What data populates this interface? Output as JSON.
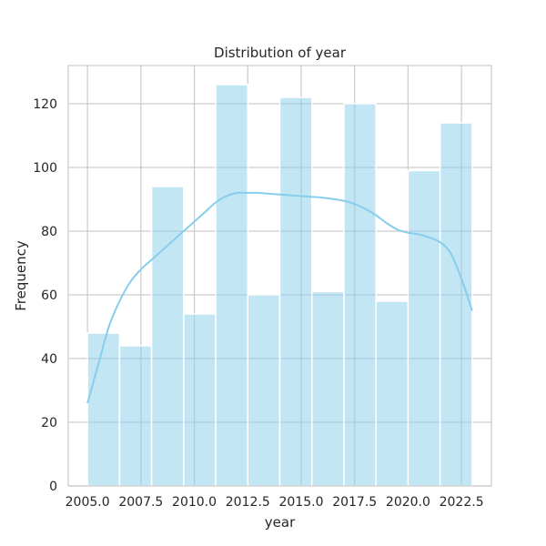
{
  "chart_data": {
    "type": "bar",
    "title": "Distribution of year",
    "xlabel": "year",
    "ylabel": "Frequency",
    "xlim": [
      2004.1,
      2023.9
    ],
    "ylim": [
      0,
      132
    ],
    "grid": true,
    "bar_color": "#87ceeb",
    "kde_color": "#87ceeb",
    "x_ticks": [
      2005.0,
      2007.5,
      2010.0,
      2012.5,
      2015.0,
      2017.5,
      2020.0,
      2022.5
    ],
    "x_tick_labels": [
      "2005.0",
      "2007.5",
      "2010.0",
      "2012.5",
      "2015.0",
      "2017.5",
      "2020.0",
      "2022.5"
    ],
    "y_ticks": [
      0,
      20,
      40,
      60,
      80,
      100,
      120
    ],
    "y_tick_labels": [
      "0",
      "20",
      "40",
      "60",
      "80",
      "100",
      "120"
    ],
    "bins": [
      {
        "start": 2005.0,
        "end": 2006.5,
        "count": 48
      },
      {
        "start": 2006.5,
        "end": 2008.0,
        "count": 44
      },
      {
        "start": 2008.0,
        "end": 2009.5,
        "count": 94
      },
      {
        "start": 2009.5,
        "end": 2011.0,
        "count": 54
      },
      {
        "start": 2011.0,
        "end": 2012.5,
        "count": 126
      },
      {
        "start": 2012.5,
        "end": 2014.0,
        "count": 60
      },
      {
        "start": 2014.0,
        "end": 2015.5,
        "count": 122
      },
      {
        "start": 2015.5,
        "end": 2017.0,
        "count": 61
      },
      {
        "start": 2017.0,
        "end": 2018.5,
        "count": 120
      },
      {
        "start": 2018.5,
        "end": 2020.0,
        "count": 58
      },
      {
        "start": 2020.0,
        "end": 2021.5,
        "count": 99
      },
      {
        "start": 2021.5,
        "end": 2023.0,
        "count": 114
      }
    ],
    "kde": {
      "x": [
        2005.0,
        2005.5,
        2006.0,
        2006.5,
        2007.0,
        2007.5,
        2008.0,
        2008.5,
        2009.0,
        2009.5,
        2010.0,
        2010.5,
        2011.0,
        2011.5,
        2012.0,
        2012.5,
        2013.0,
        2014.0,
        2015.0,
        2016.0,
        2017.0,
        2017.5,
        2018.0,
        2018.5,
        2019.0,
        2019.5,
        2020.0,
        2020.5,
        2021.0,
        2021.5,
        2022.0,
        2022.5,
        2023.0
      ],
      "y": [
        26,
        38,
        50,
        58,
        64,
        68,
        71,
        74,
        77,
        80,
        83,
        86,
        89,
        91,
        92,
        92,
        92,
        91.5,
        91,
        90.5,
        89.5,
        88.5,
        87,
        85,
        82.5,
        80.5,
        79.5,
        79,
        78,
        76.5,
        73,
        65,
        55
      ]
    }
  }
}
